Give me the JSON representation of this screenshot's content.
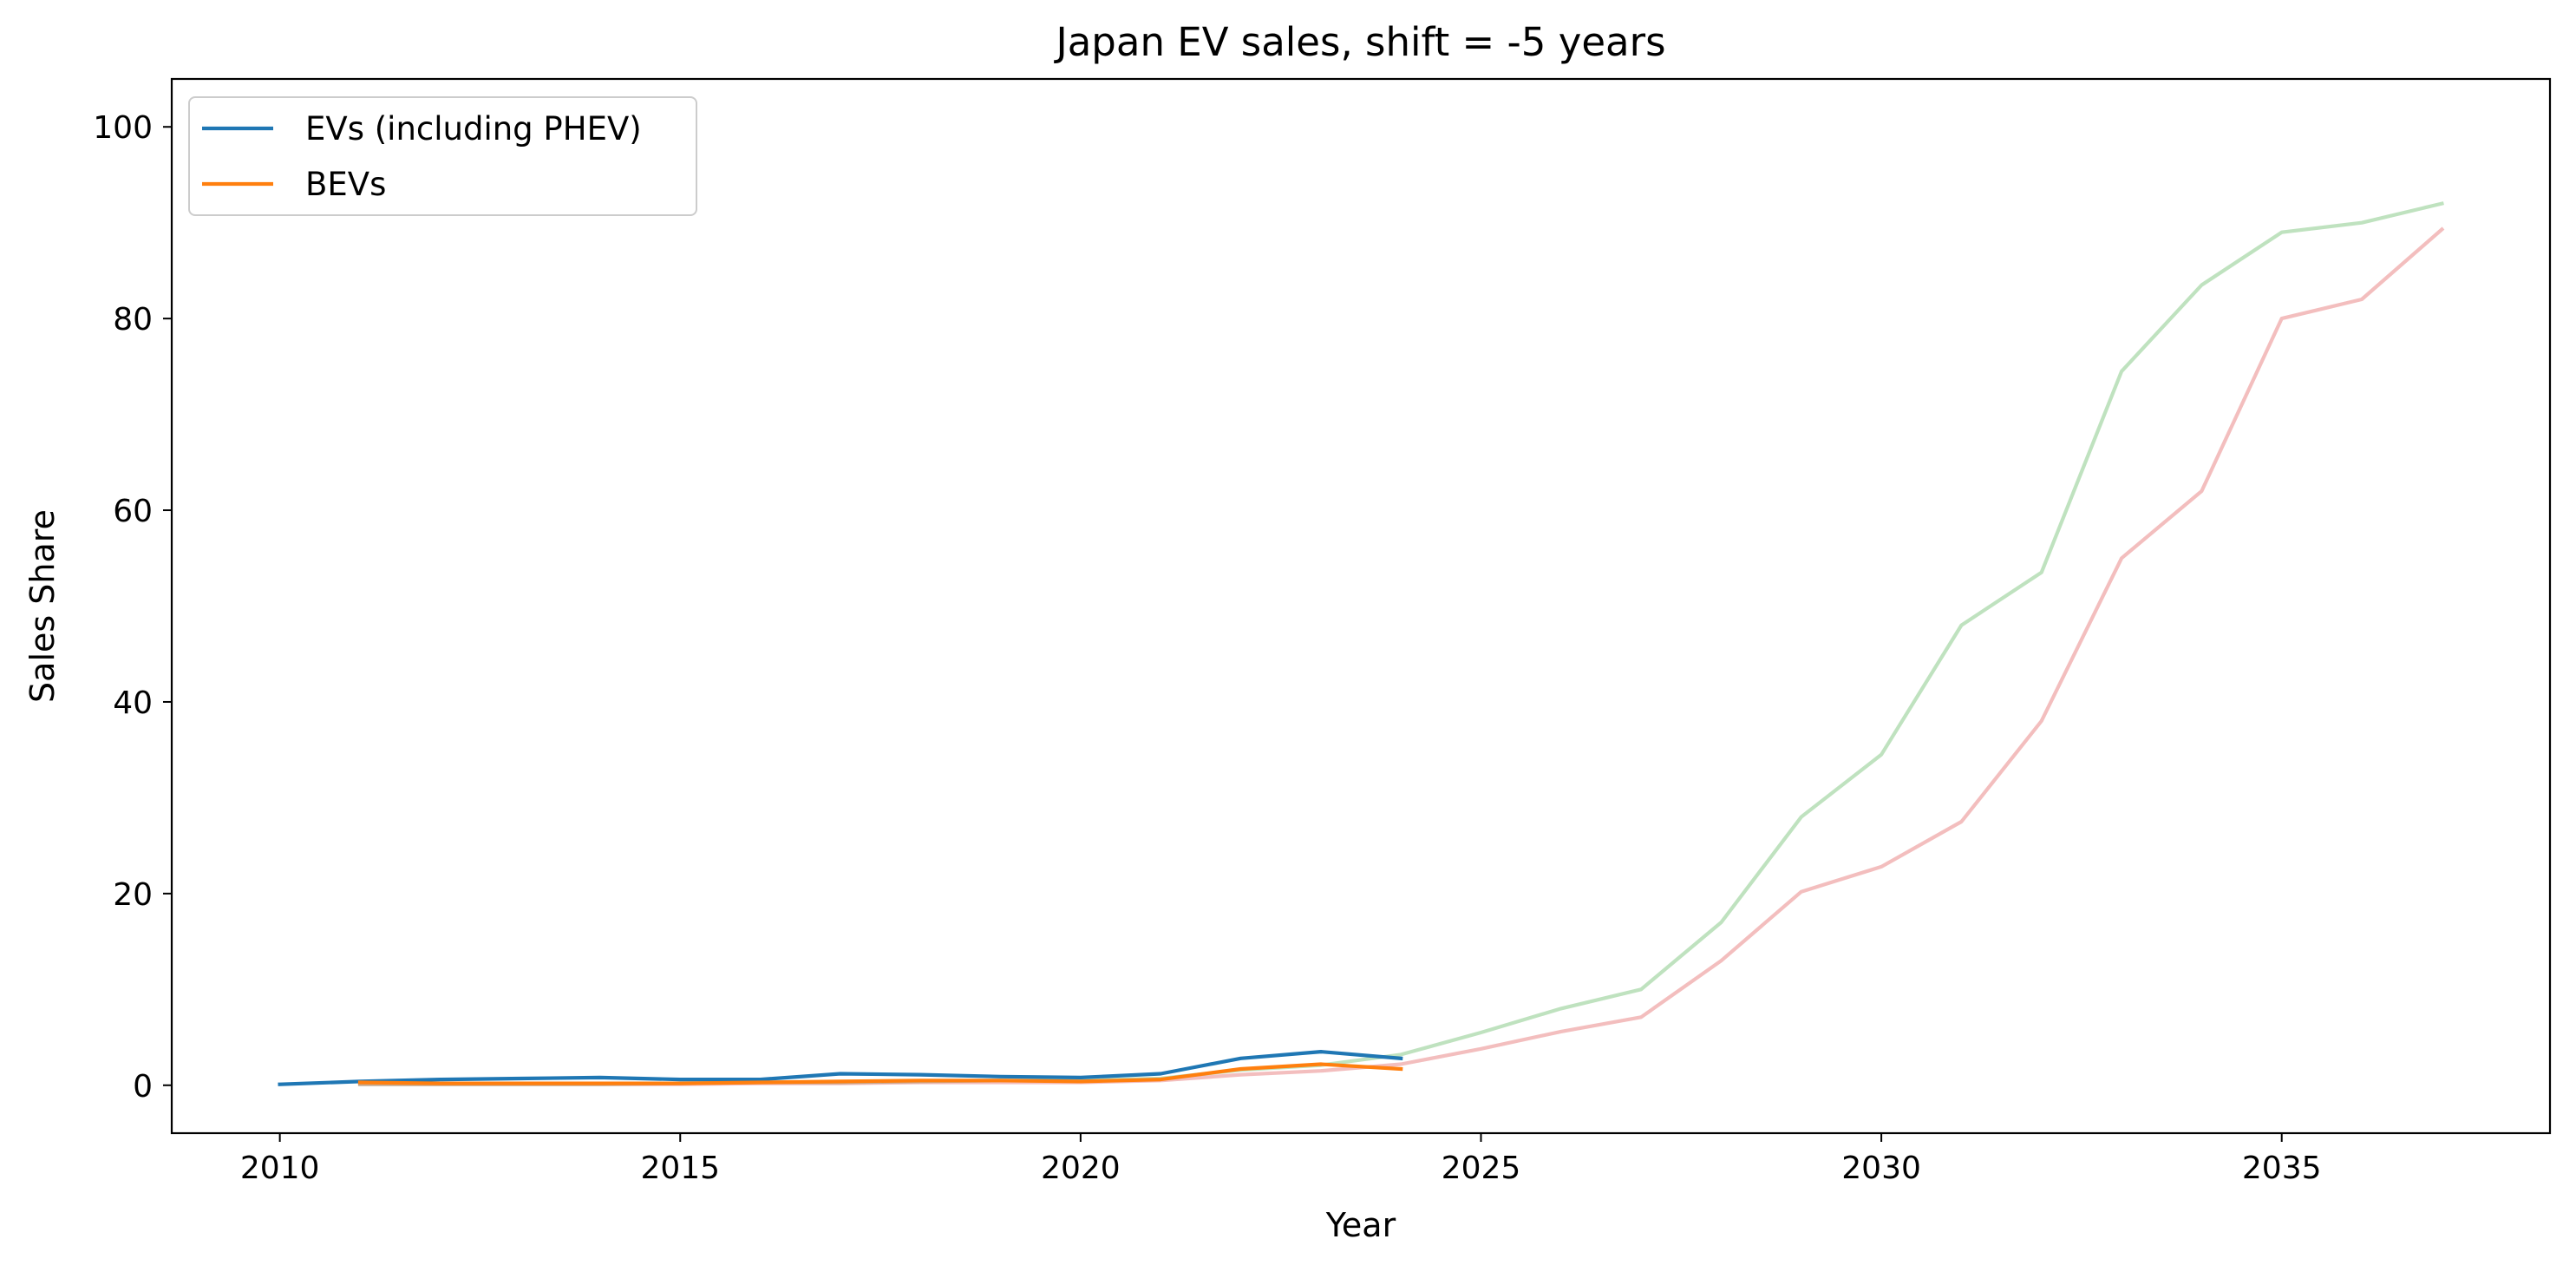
{
  "chart_data": {
    "type": "line",
    "title": "Japan EV sales, shift = -5 years",
    "xlabel": "Year",
    "ylabel": "Sales Share",
    "xlim": [
      2008.65,
      2038.35
    ],
    "ylim": [
      -5,
      105
    ],
    "xticks": [
      2010,
      2015,
      2020,
      2025,
      2030,
      2035
    ],
    "yticks": [
      0,
      20,
      40,
      60,
      80,
      100
    ],
    "grid": false,
    "legend_placement": "top-left",
    "series": [
      {
        "name": "EVs (including PHEV)",
        "color": "#1f77b4",
        "opacity": 1,
        "in_legend": true,
        "x": [
          2010,
          2011,
          2012,
          2013,
          2014,
          2015,
          2016,
          2017,
          2018,
          2019,
          2020,
          2021,
          2022,
          2023,
          2024
        ],
        "y": [
          0.1,
          0.4,
          0.6,
          0.7,
          0.8,
          0.6,
          0.6,
          1.2,
          1.1,
          0.9,
          0.8,
          1.2,
          2.8,
          3.5,
          2.8
        ]
      },
      {
        "name": "BEVs",
        "color": "#ff7f0e",
        "opacity": 1,
        "in_legend": true,
        "x": [
          2011,
          2012,
          2013,
          2014,
          2015,
          2016,
          2017,
          2018,
          2019,
          2020,
          2021,
          2022,
          2023,
          2024
        ],
        "y": [
          0.3,
          0.2,
          0.2,
          0.2,
          0.2,
          0.3,
          0.4,
          0.5,
          0.5,
          0.4,
          0.6,
          1.7,
          2.2,
          1.7
        ]
      },
      {
        "name": "",
        "color": "#2ca02c",
        "opacity": 0.3,
        "in_legend": false,
        "x": [
          2011,
          2012,
          2013,
          2014,
          2015,
          2016,
          2017,
          2018,
          2019,
          2020,
          2021,
          2022,
          2023,
          2024,
          2025,
          2026,
          2027,
          2028,
          2029,
          2030,
          2031,
          2032,
          2033,
          2034,
          2035,
          2036,
          2037
        ],
        "y": [
          0.1,
          0.1,
          0.1,
          0.1,
          0.2,
          0.3,
          0.3,
          0.4,
          0.5,
          0.5,
          0.7,
          1.6,
          2.1,
          3.2,
          5.5,
          8.0,
          10.0,
          17.0,
          28.0,
          34.5,
          48.0,
          53.5,
          74.5,
          83.5,
          89.0,
          90.0,
          92.0
        ]
      },
      {
        "name": "",
        "color": "#d62728",
        "opacity": 0.3,
        "in_legend": false,
        "x": [
          2011,
          2012,
          2013,
          2014,
          2015,
          2016,
          2017,
          2018,
          2019,
          2020,
          2021,
          2022,
          2023,
          2024,
          2025,
          2026,
          2027,
          2028,
          2029,
          2030,
          2031,
          2032,
          2033,
          2034,
          2035,
          2036,
          2037
        ],
        "y": [
          0.1,
          0.1,
          0.1,
          0.1,
          0.1,
          0.2,
          0.2,
          0.3,
          0.3,
          0.3,
          0.5,
          1.1,
          1.5,
          2.2,
          3.8,
          5.6,
          7.1,
          13.0,
          20.2,
          22.8,
          27.5,
          38.0,
          55.0,
          62.0,
          80.0,
          82.0,
          89.3
        ]
      }
    ]
  }
}
